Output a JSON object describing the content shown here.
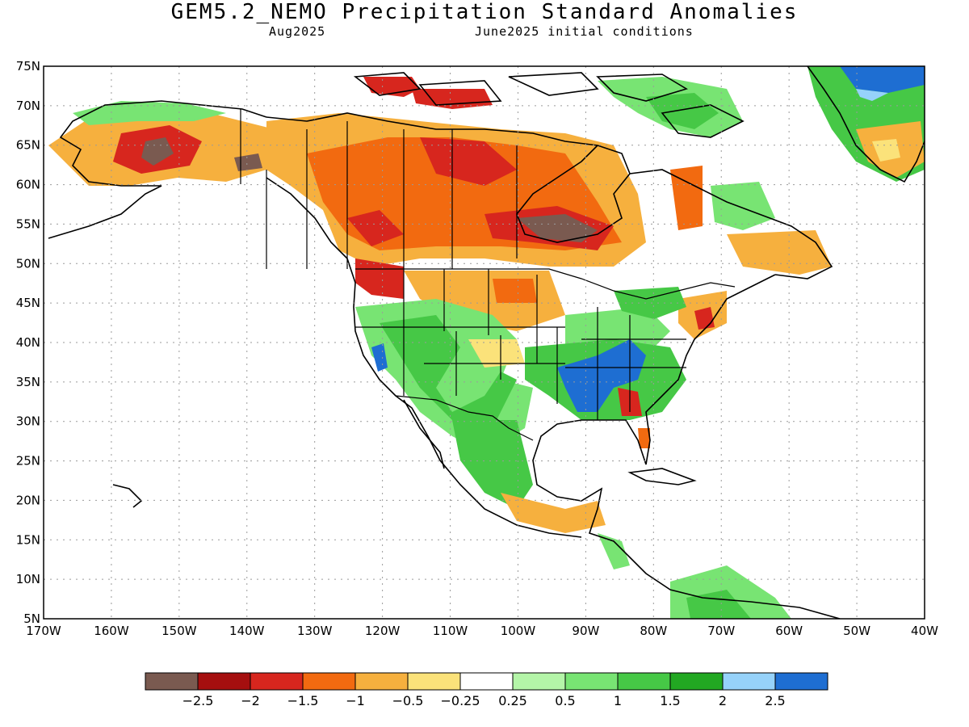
{
  "title": "GEM5.2_NEMO Precipitation Standard Anomalies",
  "subtitle_month": "Aug2025",
  "subtitle_ic": "June2025 initial conditions",
  "map": {
    "lat_labels": [
      "75N",
      "70N",
      "65N",
      "60N",
      "55N",
      "50N",
      "45N",
      "40N",
      "35N",
      "30N",
      "25N",
      "20N",
      "15N",
      "10N",
      "5N"
    ],
    "lon_labels": [
      "170W",
      "160W",
      "150W",
      "140W",
      "130W",
      "120W",
      "110W",
      "100W",
      "90W",
      "80W",
      "70W",
      "60W",
      "50W",
      "40W"
    ],
    "lat_range": [
      5,
      75
    ],
    "lon_range": [
      -170,
      -40
    ]
  },
  "colorbar": {
    "colors": [
      "#7a5a50",
      "#a50f0f",
      "#d7261e",
      "#f26a10",
      "#f6b03e",
      "#fbe27a",
      "#ffffff",
      "#b4f5a8",
      "#78e473",
      "#46c846",
      "#22a822",
      "#96d2fa",
      "#1e6ed2"
    ],
    "labels": [
      "−2.5",
      "−2",
      "−1.5",
      "−1",
      "−0.5",
      "−0.25",
      "0.25",
      "0.5",
      "1",
      "1.5",
      "2",
      "2.5"
    ]
  },
  "anomaly_regions": [
    {
      "name": "Alaska interior dry",
      "level": "-2.5",
      "color": "#7a5a50"
    },
    {
      "name": "Hudson Bay dry",
      "level": "-2.5",
      "color": "#7a5a50"
    },
    {
      "name": "Tennessee Valley wet",
      "level": "2.5",
      "color": "#1e6ed2"
    },
    {
      "name": "Greenland wet",
      "level": "2.5",
      "color": "#1e6ed2"
    },
    {
      "name": "Southwest US wet",
      "level": "1.5",
      "color": "#46c846"
    }
  ]
}
